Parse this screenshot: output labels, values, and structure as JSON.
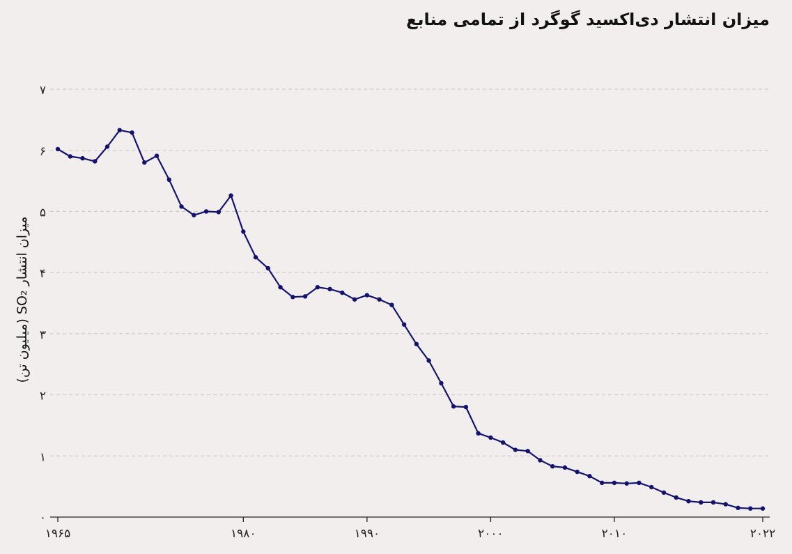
{
  "chart_data": {
    "type": "line",
    "title": "میزان انتشار دی‌اکسید گوگرد از تمامی منابع",
    "ylabel": "میزان انتشار SO₂ (میلیون تن)",
    "xlabel": "",
    "xlim": [
      1965,
      2022
    ],
    "ylim": [
      0,
      7
    ],
    "grid": true,
    "x_ticks": [
      {
        "value": 1965,
        "label": "۱۹۶۵"
      },
      {
        "value": 1980,
        "label": "۱۹۸۰"
      },
      {
        "value": 1990,
        "label": "۱۹۹۰"
      },
      {
        "value": 2000,
        "label": "۲۰۰۰"
      },
      {
        "value": 2010,
        "label": "۲۰۱۰"
      },
      {
        "value": 2022,
        "label": "۲۰۲۲"
      }
    ],
    "y_ticks": [
      {
        "value": 0,
        "label": "۰"
      },
      {
        "value": 1,
        "label": "۱"
      },
      {
        "value": 2,
        "label": "۲"
      },
      {
        "value": 3,
        "label": "۳"
      },
      {
        "value": 4,
        "label": "۴"
      },
      {
        "value": 5,
        "label": "۵"
      },
      {
        "value": 6,
        "label": "۶"
      },
      {
        "value": 7,
        "label": "۷"
      }
    ],
    "series": [
      {
        "color": "#13136e",
        "x": [
          1965,
          1966,
          1967,
          1968,
          1969,
          1970,
          1971,
          1972,
          1973,
          1974,
          1975,
          1976,
          1977,
          1978,
          1979,
          1980,
          1981,
          1982,
          1983,
          1984,
          1985,
          1986,
          1987,
          1988,
          1989,
          1990,
          1991,
          1992,
          1993,
          1994,
          1995,
          1996,
          1997,
          1998,
          1999,
          2000,
          2001,
          2002,
          2003,
          2004,
          2005,
          2006,
          2007,
          2008,
          2009,
          2010,
          2011,
          2012,
          2013,
          2014,
          2015,
          2016,
          2017,
          2018,
          2019,
          2020,
          2021,
          2022
        ],
        "values": [
          6.02,
          5.9,
          5.87,
          5.82,
          6.06,
          6.33,
          6.29,
          5.8,
          5.91,
          5.52,
          5.08,
          4.94,
          5.0,
          4.99,
          5.26,
          4.67,
          4.25,
          4.07,
          3.76,
          3.6,
          3.61,
          3.76,
          3.73,
          3.67,
          3.56,
          3.63,
          3.56,
          3.47,
          3.15,
          2.83,
          2.56,
          2.19,
          1.81,
          1.8,
          1.37,
          1.3,
          1.22,
          1.1,
          1.08,
          0.93,
          0.83,
          0.81,
          0.74,
          0.67,
          0.56,
          0.56,
          0.55,
          0.56,
          0.49,
          0.4,
          0.32,
          0.26,
          0.24,
          0.24,
          0.21,
          0.15,
          0.14,
          0.14
        ]
      }
    ]
  }
}
